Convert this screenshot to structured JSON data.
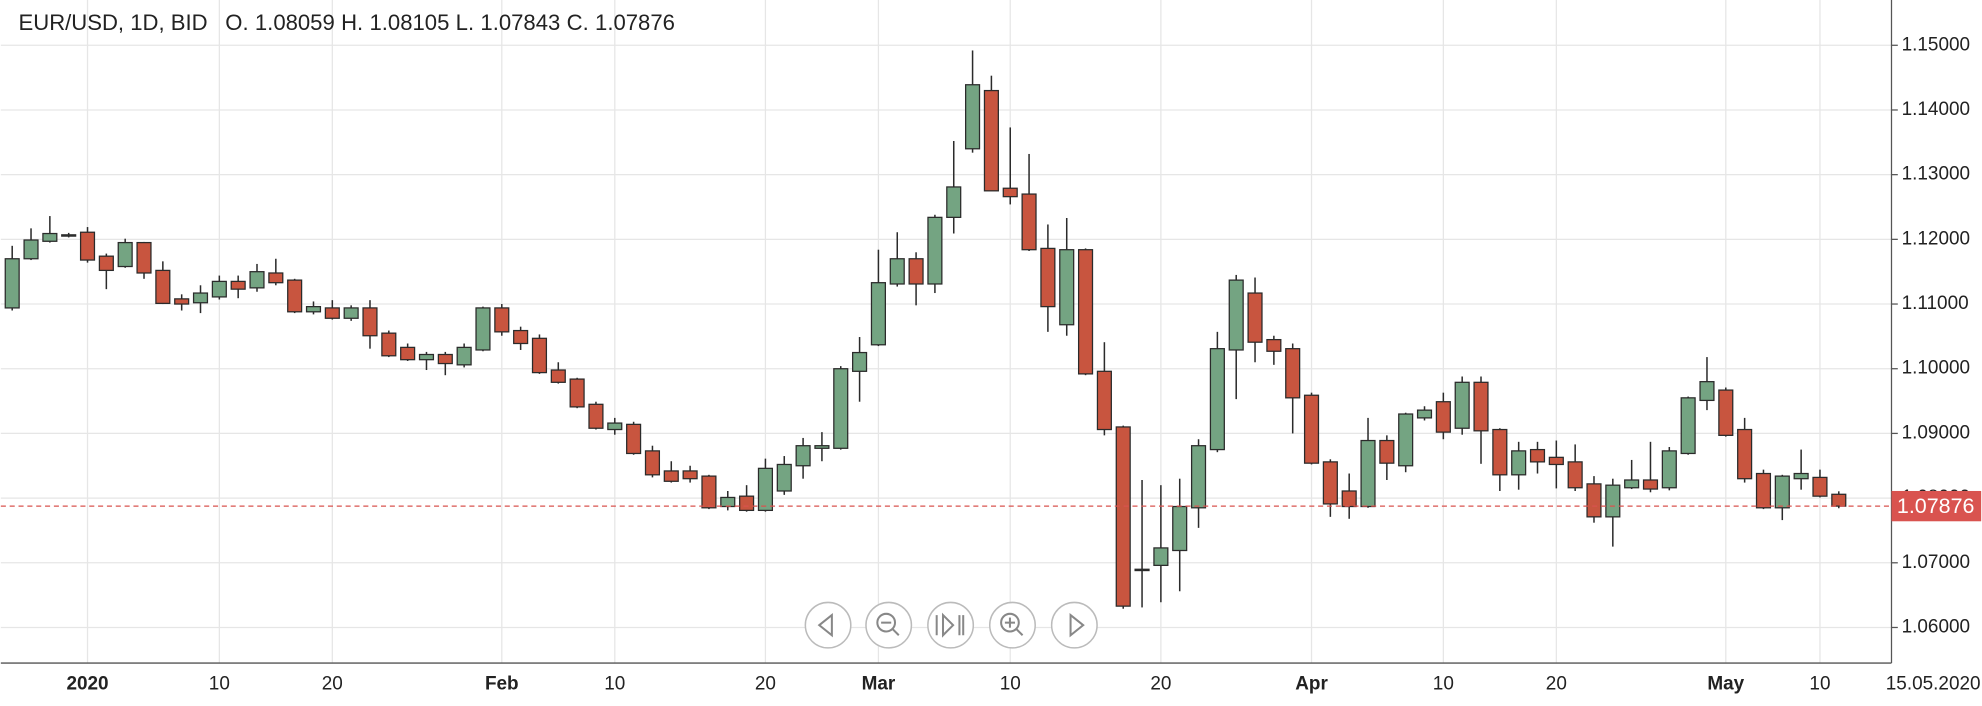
{
  "chart_data": {
    "type": "candlestick",
    "title": "EUR/USD, 1D, BID",
    "ohlc_labels": [
      "O.",
      "H.",
      "L.",
      "C."
    ],
    "last_date": "15.05.2020",
    "up_color": "#74a482",
    "down_color": "#c8553f",
    "last_price_color": "#d9534f",
    "grid": true,
    "ylim": [
      1.0545,
      1.157
    ],
    "yticks": [
      {
        "value": 1.06,
        "label": "1.06000"
      },
      {
        "value": 1.07,
        "label": "1.07000"
      },
      {
        "value": 1.08,
        "label": "1.08000"
      },
      {
        "value": 1.09,
        "label": "1.09000"
      },
      {
        "value": 1.1,
        "label": "1.10000"
      },
      {
        "value": 1.11,
        "label": "1.11000"
      },
      {
        "value": 1.12,
        "label": "1.12000"
      },
      {
        "value": 1.13,
        "label": "1.13000"
      },
      {
        "value": 1.14,
        "label": "1.14000"
      },
      {
        "value": 1.15,
        "label": "1.15000"
      }
    ],
    "categories": [
      null,
      null,
      null,
      null,
      "2020",
      null,
      null,
      null,
      null,
      null,
      null,
      "10",
      null,
      null,
      null,
      null,
      null,
      "20",
      null,
      null,
      null,
      null,
      null,
      null,
      null,
      null,
      "Feb",
      null,
      null,
      null,
      null,
      null,
      "10",
      null,
      null,
      null,
      null,
      null,
      null,
      null,
      "20",
      null,
      null,
      null,
      null,
      null,
      "Mar",
      null,
      null,
      null,
      null,
      null,
      null,
      "10",
      null,
      null,
      null,
      null,
      null,
      null,
      null,
      "20",
      null,
      null,
      null,
      null,
      null,
      null,
      null,
      "Apr",
      null,
      null,
      null,
      null,
      null,
      null,
      "10",
      null,
      null,
      null,
      null,
      null,
      "20",
      null,
      null,
      null,
      null,
      null,
      null,
      null,
      null,
      "May",
      null,
      null,
      null,
      null,
      "10",
      null
    ],
    "open": [
      1.1094,
      1.117,
      1.1197,
      1.1205,
      1.1211,
      1.1174,
      1.1158,
      1.1195,
      1.1152,
      1.1108,
      1.1102,
      1.1111,
      1.1135,
      1.1125,
      1.1148,
      1.1137,
      1.1088,
      1.1094,
      1.1078,
      1.1094,
      1.1055,
      1.1033,
      1.1014,
      1.1022,
      1.1006,
      1.1029,
      1.1094,
      1.1059,
      1.1047,
      1.0998,
      1.0984,
      1.0945,
      1.0906,
      1.0914,
      1.0873,
      1.0842,
      1.0842,
      1.0834,
      1.0787,
      1.0803,
      1.0781,
      1.0811,
      1.085,
      1.0877,
      1.0877,
      1.0996,
      1.1037,
      1.1131,
      1.117,
      1.1131,
      1.1234,
      1.134,
      1.143,
      1.1279,
      1.127,
      1.1186,
      1.1068,
      1.1184,
      1.0996,
      1.091,
      1.0688,
      1.0696,
      1.0719,
      1.0785,
      1.0875,
      1.1029,
      1.1117,
      1.1045,
      1.1031,
      1.0959,
      1.0856,
      1.0811,
      1.0787,
      1.0889,
      1.085,
      1.0924,
      1.0949,
      1.0908,
      1.0979,
      1.0906,
      1.0836,
      1.0875,
      1.0863,
      1.0856,
      1.0822,
      1.0771,
      1.0816,
      1.0828,
      1.0816,
      1.0869,
      1.0951,
      1.0967,
      1.0906,
      1.0838,
      1.0785,
      1.083,
      1.0832,
      1.08059
    ],
    "high": [
      1.119,
      1.1217,
      1.1236,
      1.121,
      1.1219,
      1.1178,
      1.1201,
      1.1196,
      1.1166,
      1.1115,
      1.1129,
      1.1144,
      1.1144,
      1.1162,
      1.117,
      1.1139,
      1.1104,
      1.1106,
      1.1098,
      1.1106,
      1.1059,
      1.1039,
      1.1026,
      1.1026,
      1.1039,
      1.1096,
      1.11,
      1.1065,
      1.1053,
      1.101,
      1.0986,
      1.0949,
      1.0924,
      1.0918,
      1.0881,
      1.0857,
      1.085,
      1.0836,
      1.0811,
      1.082,
      1.0861,
      1.0865,
      1.0893,
      1.0902,
      1.1004,
      1.1049,
      1.1184,
      1.1211,
      1.118,
      1.1238,
      1.1352,
      1.1492,
      1.1453,
      1.1373,
      1.1332,
      1.1223,
      1.1233,
      1.1186,
      1.1041,
      1.0912,
      1.0828,
      1.082,
      1.083,
      1.0891,
      1.1057,
      1.1145,
      1.1141,
      1.1051,
      1.1039,
      1.0963,
      1.086,
      1.0838,
      1.0924,
      1.0897,
      1.0932,
      1.0942,
      1.0963,
      1.0988,
      1.0988,
      1.0908,
      1.0887,
      1.0887,
      1.0889,
      1.0883,
      1.0834,
      1.083,
      1.0859,
      1.0887,
      1.0879,
      1.0957,
      1.1018,
      1.0971,
      1.0924,
      1.0844,
      1.0836,
      1.0875,
      1.0844,
      1.08105
    ],
    "low": [
      1.109,
      1.1168,
      1.1195,
      1.1203,
      1.1164,
      1.1123,
      1.1156,
      1.1139,
      1.11,
      1.109,
      1.1086,
      1.1107,
      1.1109,
      1.1119,
      1.1129,
      1.1086,
      1.1084,
      1.1076,
      1.1074,
      1.1031,
      1.1018,
      1.1012,
      1.0998,
      1.099,
      1.1002,
      1.1027,
      1.1051,
      1.1029,
      1.0992,
      1.0977,
      1.0939,
      1.0906,
      1.0898,
      1.0867,
      1.0832,
      1.0824,
      1.0824,
      1.0783,
      1.0781,
      1.0779,
      1.0779,
      1.0805,
      1.083,
      1.0857,
      1.0875,
      1.0949,
      1.1035,
      1.1127,
      1.1098,
      1.1117,
      1.1209,
      1.1334,
      1.1275,
      1.1254,
      1.1182,
      1.1057,
      1.1051,
      1.099,
      1.0897,
      1.0629,
      1.0631,
      1.0639,
      1.0656,
      1.0754,
      1.0871,
      1.0953,
      1.101,
      1.1006,
      1.09,
      1.0852,
      1.0771,
      1.0768,
      1.0785,
      1.0828,
      1.084,
      1.092,
      1.0891,
      1.0898,
      1.0853,
      1.0811,
      1.0813,
      1.0838,
      1.0815,
      1.0811,
      1.0762,
      1.0725,
      1.0814,
      1.0809,
      1.0812,
      1.0867,
      1.0936,
      1.0895,
      1.0824,
      1.0783,
      1.0766,
      1.0813,
      1.0801,
      1.07843
    ],
    "close": [
      1.117,
      1.1199,
      1.1209,
      1.1207,
      1.1168,
      1.1152,
      1.1195,
      1.1148,
      1.1101,
      1.11,
      1.1117,
      1.1135,
      1.1123,
      1.115,
      1.1133,
      1.1088,
      1.1096,
      1.1078,
      1.1094,
      1.1051,
      1.102,
      1.1014,
      1.1022,
      1.1008,
      1.1033,
      1.1094,
      1.1057,
      1.1039,
      1.0994,
      1.0979,
      1.0941,
      1.0908,
      1.0916,
      1.0869,
      1.0836,
      1.0826,
      1.083,
      1.0785,
      1.0801,
      1.0781,
      1.0846,
      1.0852,
      1.0881,
      1.0881,
      1.1,
      1.1025,
      1.1133,
      1.117,
      1.1131,
      1.1234,
      1.1281,
      1.1439,
      1.1275,
      1.1266,
      1.1184,
      1.1096,
      1.1184,
      1.0992,
      1.0906,
      1.0633,
      1.069,
      1.0723,
      1.0787,
      1.0881,
      1.1031,
      1.1137,
      1.1041,
      1.1027,
      1.0955,
      1.0854,
      1.0791,
      1.0787,
      1.0889,
      1.0854,
      1.093,
      1.0936,
      1.0902,
      1.0979,
      1.0904,
      1.0836,
      1.0873,
      1.0856,
      1.0852,
      1.0816,
      1.0771,
      1.082,
      1.0828,
      1.0814,
      1.0873,
      1.0955,
      1.098,
      1.0897,
      1.083,
      1.0785,
      1.0834,
      1.0838,
      1.0803,
      1.07876
    ]
  }
}
